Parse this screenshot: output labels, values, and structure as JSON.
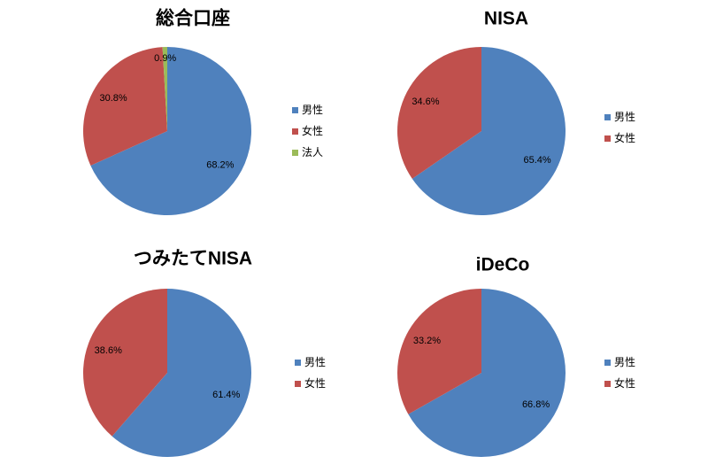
{
  "chart_data": [
    {
      "type": "pie",
      "title": "総合口座",
      "categories": [
        "男性",
        "女性",
        "法人"
      ],
      "values": [
        68.2,
        30.8,
        0.9
      ],
      "value_labels": [
        "68.2%",
        "30.8%",
        "0.9%"
      ],
      "colors": [
        "#4f81bd",
        "#c0504d",
        "#9bbb59"
      ]
    },
    {
      "type": "pie",
      "title": "NISA",
      "categories": [
        "男性",
        "女性"
      ],
      "values": [
        65.4,
        34.6
      ],
      "value_labels": [
        "65.4%",
        "34.6%"
      ],
      "colors": [
        "#4f81bd",
        "#c0504d"
      ]
    },
    {
      "type": "pie",
      "title": "つみたてNISA",
      "categories": [
        "男性",
        "女性"
      ],
      "values": [
        61.4,
        38.6
      ],
      "value_labels": [
        "61.4%",
        "38.6%"
      ],
      "colors": [
        "#4f81bd",
        "#c0504d"
      ]
    },
    {
      "type": "pie",
      "title": "iDeCo",
      "categories": [
        "男性",
        "女性"
      ],
      "values": [
        66.8,
        33.2
      ],
      "value_labels": [
        "66.8%",
        "33.2%"
      ],
      "colors": [
        "#4f81bd",
        "#c0504d"
      ]
    }
  ]
}
